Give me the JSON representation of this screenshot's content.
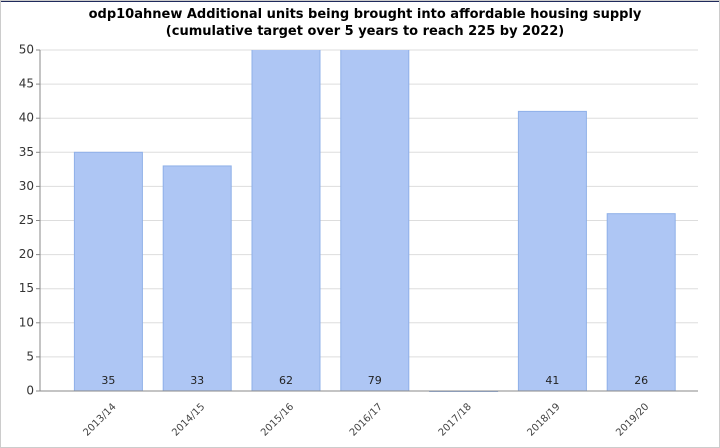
{
  "chart_data": {
    "type": "bar",
    "title": "odp10ahnew Additional units being brought into affordable housing supply (cumulative target over 5 years to reach 225 by 2022)",
    "categories": [
      "2013/14",
      "2014/15",
      "2015/16",
      "2016/17",
      "2017/18",
      "2018/19",
      "2019/20"
    ],
    "values": [
      35,
      33,
      62,
      79,
      0,
      41,
      26
    ],
    "value_labels": [
      "35",
      "33",
      "62",
      "79",
      null,
      "41",
      "26"
    ],
    "color": "#aec6f4",
    "ylim": [
      0,
      50
    ],
    "yticks": [
      0,
      5,
      10,
      15,
      20,
      25,
      30,
      35,
      40,
      45,
      50
    ],
    "grid": true
  }
}
